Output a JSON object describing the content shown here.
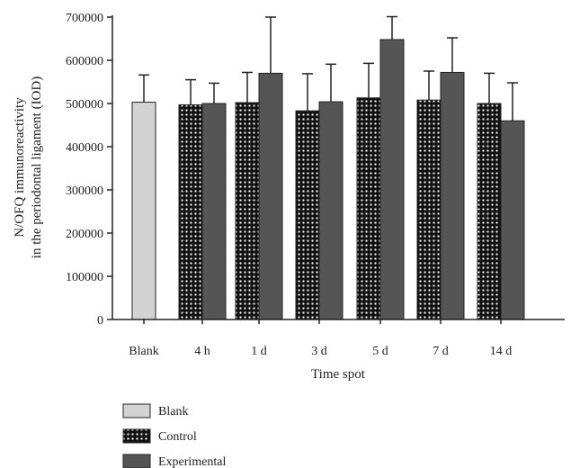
{
  "chart_data": {
    "type": "bar",
    "categories": [
      "Blank",
      "4 h",
      "1 d",
      "3 d",
      "5 d",
      "7 d",
      "14 d"
    ],
    "xlabel": "Time spot",
    "ylabel_lines": [
      "N/OFQ immunoreactivity",
      "in the periodontal ligament (IOD)"
    ],
    "ylim": [
      0,
      700000
    ],
    "yticks": [
      0,
      100000,
      200000,
      300000,
      400000,
      500000,
      600000,
      700000
    ],
    "grid": false,
    "legend_position": "bottom-left",
    "series": [
      {
        "name": "Blank",
        "color": "#d3d3d3",
        "pattern": "solid",
        "values": [
          503000,
          null,
          null,
          null,
          null,
          null,
          null
        ],
        "errors": [
          63000,
          null,
          null,
          null,
          null,
          null,
          null
        ]
      },
      {
        "name": "Control",
        "color": "#111111",
        "pattern": "dotted",
        "values": [
          null,
          497000,
          502000,
          483000,
          513000,
          508000,
          500000
        ],
        "errors": [
          null,
          58000,
          70000,
          86000,
          80000,
          67000,
          70000
        ]
      },
      {
        "name": "Experimental",
        "color": "#555555",
        "pattern": "solid",
        "values": [
          null,
          500000,
          570000,
          504000,
          648000,
          572000,
          460000
        ],
        "errors": [
          null,
          47000,
          130000,
          87000,
          53000,
          80000,
          88000
        ]
      }
    ]
  }
}
